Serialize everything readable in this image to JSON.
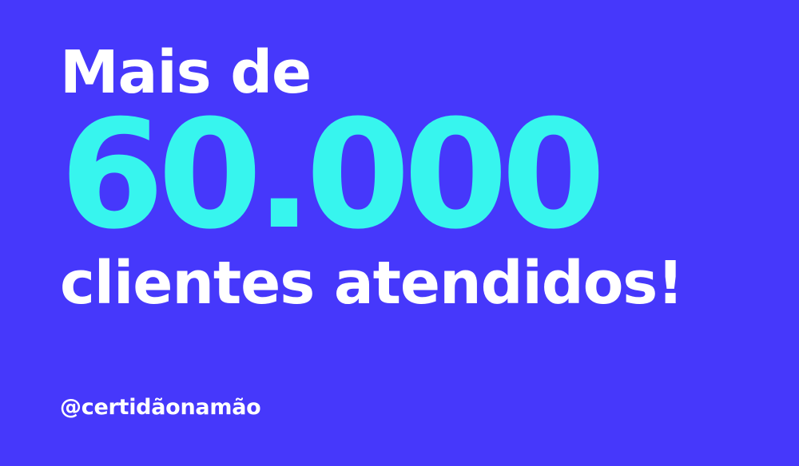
{
  "banner": {
    "line1": "Mais de",
    "number": "60.000",
    "line2": "clientes atendidos!",
    "handle": "@certidãonamão"
  },
  "colors": {
    "background": "#4638fb",
    "number_accent": "#37f5ee",
    "text": "#ffffff"
  }
}
